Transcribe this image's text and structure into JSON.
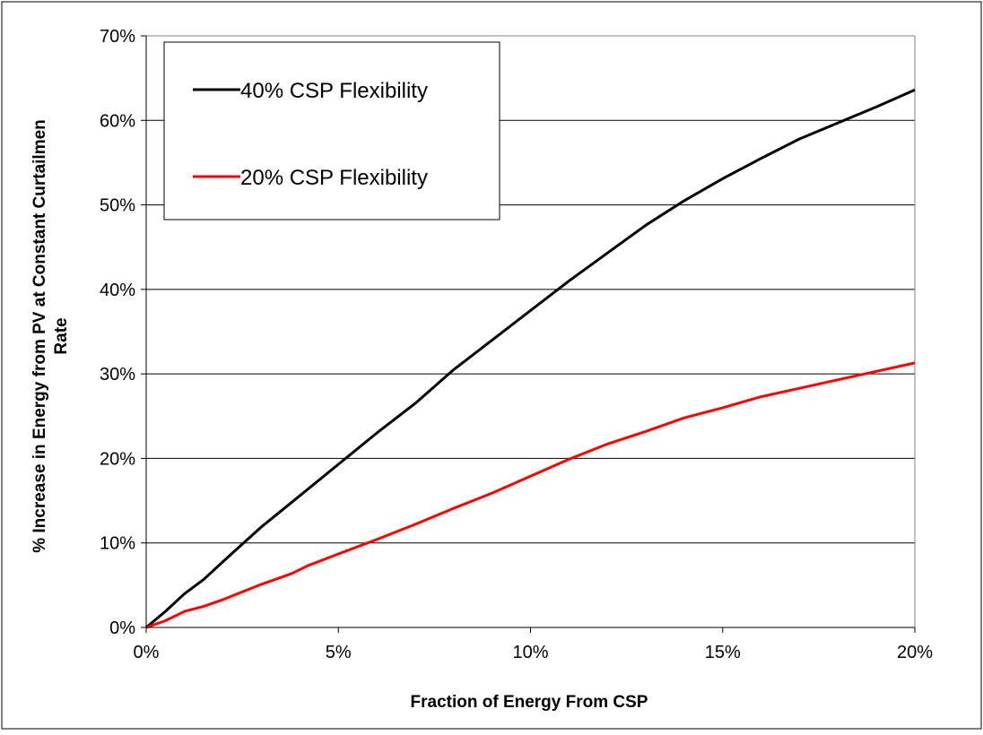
{
  "chart_data": {
    "type": "line",
    "title": "",
    "xlabel": "Fraction of Energy From CSP",
    "ylabel_lines": [
      "% Increase in Energy from PV at Constant Curtailmen",
      "Rate"
    ],
    "xlim": [
      0,
      20
    ],
    "ylim": [
      0,
      70
    ],
    "x_ticks": [
      0,
      5,
      10,
      15,
      20
    ],
    "x_tick_labels": [
      "0%",
      "5%",
      "10%",
      "15%",
      "20%"
    ],
    "y_ticks": [
      0,
      10,
      20,
      30,
      40,
      50,
      60,
      70
    ],
    "y_tick_labels": [
      "0%",
      "10%",
      "20%",
      "30%",
      "40%",
      "50%",
      "60%",
      "70%"
    ],
    "grid": "horizontal",
    "legend_position": "top-left",
    "series": [
      {
        "name": "40% CSP Flexibility",
        "color": "#000000",
        "x": [
          0,
          0.5,
          1.0,
          1.5,
          2.0,
          3.0,
          4.0,
          5.0,
          6.0,
          7.0,
          8.0,
          9.0,
          10.0,
          11.0,
          12.0,
          13.0,
          14.0,
          15.0,
          16.0,
          17.0,
          18.0,
          19.0,
          20.0
        ],
        "values": [
          0,
          1.9,
          4.0,
          5.7,
          7.8,
          11.9,
          15.6,
          19.3,
          23.0,
          26.5,
          30.5,
          34.0,
          37.5,
          41.0,
          44.3,
          47.6,
          50.5,
          53.1,
          55.5,
          57.8,
          59.7,
          61.6,
          63.6
        ]
      },
      {
        "name": "20% CSP Flexibility",
        "color": "#ff0000",
        "x": [
          0,
          0.5,
          1.0,
          1.5,
          2.0,
          3.0,
          3.8,
          4.2,
          5.0,
          6.0,
          7.0,
          8.0,
          9.0,
          10.0,
          11.0,
          12.0,
          13.0,
          14.0,
          15.0,
          16.0,
          17.0,
          18.0,
          19.0,
          20.0
        ],
        "values": [
          0,
          0.8,
          1.9,
          2.5,
          3.3,
          5.1,
          6.4,
          7.3,
          8.7,
          10.4,
          12.2,
          14.1,
          15.9,
          17.9,
          19.9,
          21.7,
          23.2,
          24.8,
          26.0,
          27.3,
          28.3,
          29.3,
          30.3,
          31.3
        ]
      }
    ]
  }
}
